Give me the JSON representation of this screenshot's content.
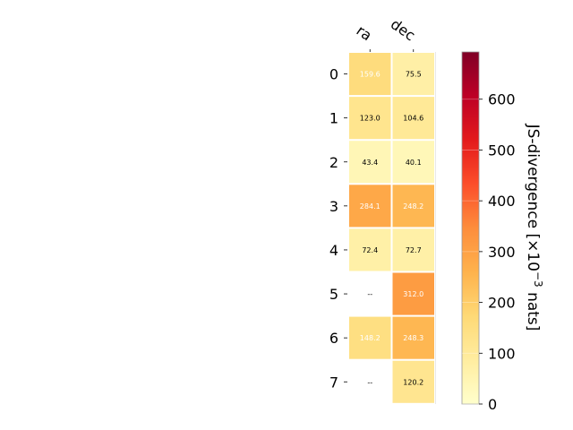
{
  "chart_data": {
    "type": "heatmap",
    "columns": [
      "ra",
      "dec"
    ],
    "rows": [
      "0",
      "1",
      "2",
      "3",
      "4",
      "5",
      "6",
      "7"
    ],
    "values": [
      [
        159.6,
        75.5
      ],
      [
        123.0,
        104.6
      ],
      [
        43.4,
        40.1
      ],
      [
        284.1,
        248.2
      ],
      [
        72.4,
        72.7
      ],
      [
        null,
        312.0
      ],
      [
        148.2,
        248.3
      ],
      [
        null,
        120.2
      ]
    ],
    "labels": [
      [
        "159.6",
        "75.5"
      ],
      [
        "123.0",
        "104.6"
      ],
      [
        "43.4",
        "40.1"
      ],
      [
        "284.1",
        "248.2"
      ],
      [
        "72.4",
        "72.7"
      ],
      [
        "--",
        "312.0"
      ],
      [
        "148.2",
        "248.3"
      ],
      [
        "--",
        "120.2"
      ]
    ],
    "colorbar": {
      "label": "JS-divergence [×10",
      "label_exp": "−3",
      "label_unit": " nats]",
      "range": [
        0,
        693
      ],
      "ticks": [
        0,
        100,
        200,
        300,
        400,
        500,
        600
      ],
      "colormap": "YlOrRd"
    },
    "text_color_threshold": 140
  }
}
